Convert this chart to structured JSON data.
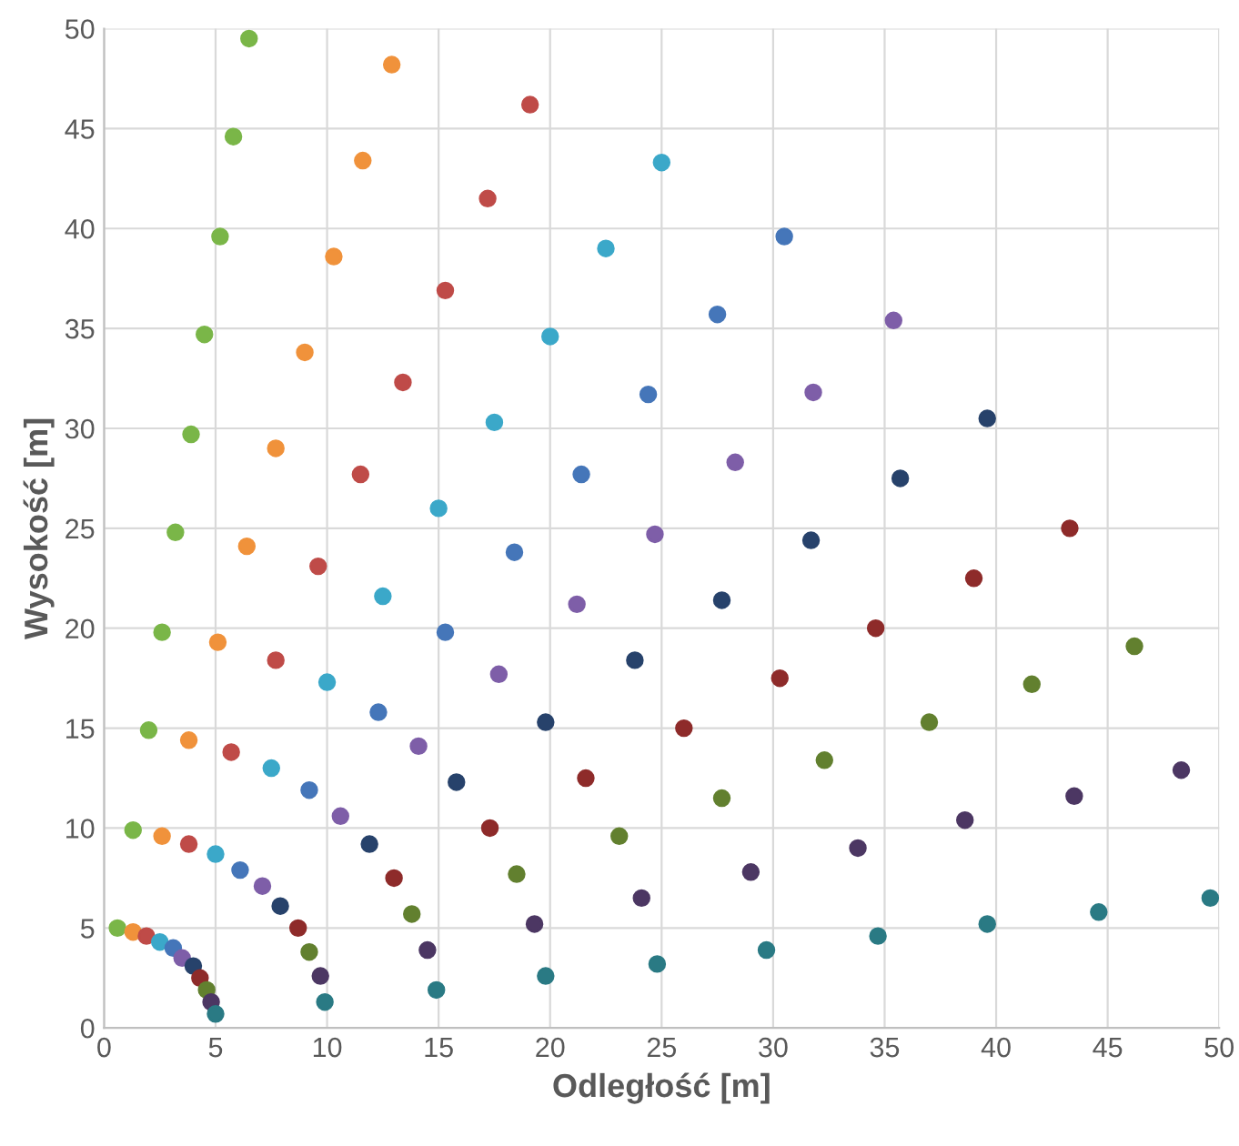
{
  "chart_data": {
    "type": "scatter",
    "xlabel": "Odległość [m]",
    "ylabel": "Wysokość [m]",
    "xlim": [
      0,
      50
    ],
    "ylim": [
      0,
      50
    ],
    "xticks": [
      0,
      5,
      10,
      15,
      20,
      25,
      30,
      35,
      40,
      45,
      50
    ],
    "yticks": [
      0,
      5,
      10,
      15,
      20,
      25,
      30,
      35,
      40,
      45,
      50
    ],
    "grid": true,
    "marker": "circle",
    "series": [
      {
        "color": "#7ab648",
        "x": [
          0.6,
          1.3,
          2.0,
          2.6,
          3.2,
          3.9,
          4.5,
          5.2,
          5.8,
          6.5
        ],
        "values": [
          5.0,
          9.9,
          14.9,
          19.8,
          24.8,
          29.7,
          34.7,
          39.6,
          44.6,
          49.5
        ]
      },
      {
        "color": "#f0923b",
        "x": [
          1.3,
          2.6,
          3.8,
          5.1,
          6.4,
          7.7,
          9.0,
          10.3,
          11.6,
          12.9
        ],
        "values": [
          4.8,
          9.6,
          14.4,
          19.3,
          24.1,
          29.0,
          33.8,
          38.6,
          43.4,
          48.2
        ]
      },
      {
        "color": "#bf4b48",
        "x": [
          1.9,
          3.8,
          5.7,
          7.7,
          9.6,
          11.5,
          13.4,
          15.3,
          17.2,
          19.1
        ],
        "values": [
          4.6,
          9.2,
          13.8,
          18.4,
          23.1,
          27.7,
          32.3,
          36.9,
          41.5,
          46.2
        ]
      },
      {
        "color": "#3ba8c9",
        "x": [
          2.5,
          5.0,
          7.5,
          10.0,
          12.5,
          15.0,
          17.5,
          20.0,
          22.5,
          25.0
        ],
        "values": [
          4.3,
          8.7,
          13.0,
          17.3,
          21.6,
          26.0,
          30.3,
          34.6,
          39.0,
          43.3
        ]
      },
      {
        "color": "#4576b9",
        "x": [
          3.1,
          6.1,
          9.2,
          12.3,
          15.3,
          18.4,
          21.4,
          24.4,
          27.5,
          30.5
        ],
        "values": [
          4.0,
          7.9,
          11.9,
          15.8,
          19.8,
          23.8,
          27.7,
          31.7,
          35.7,
          39.6
        ]
      },
      {
        "color": "#7e5ea8",
        "x": [
          3.5,
          7.1,
          10.6,
          14.1,
          17.7,
          21.2,
          24.7,
          28.3,
          31.8,
          35.4
        ],
        "values": [
          3.5,
          7.1,
          10.6,
          14.1,
          17.7,
          21.2,
          24.7,
          28.3,
          31.8,
          35.4
        ]
      },
      {
        "color": "#27426b",
        "x": [
          4.0,
          7.9,
          11.9,
          15.8,
          19.8,
          23.8,
          27.7,
          31.7,
          35.7,
          39.6
        ],
        "values": [
          3.1,
          6.1,
          9.2,
          12.3,
          15.3,
          18.4,
          21.4,
          24.4,
          27.5,
          30.5
        ]
      },
      {
        "color": "#8e2b2a",
        "x": [
          4.3,
          8.7,
          13.0,
          17.3,
          21.6,
          26.0,
          30.3,
          34.6,
          39.0,
          43.3
        ],
        "values": [
          2.5,
          5.0,
          7.5,
          10.0,
          12.5,
          15.0,
          17.5,
          20.0,
          22.5,
          25.0
        ]
      },
      {
        "color": "#62802f",
        "x": [
          4.6,
          9.2,
          13.8,
          18.5,
          23.1,
          27.7,
          32.3,
          37.0,
          41.6,
          46.2
        ],
        "values": [
          1.9,
          3.8,
          5.7,
          7.7,
          9.6,
          11.5,
          13.4,
          15.3,
          17.2,
          19.1
        ]
      },
      {
        "color": "#4c3763",
        "x": [
          4.8,
          9.7,
          14.5,
          19.3,
          24.1,
          29.0,
          33.8,
          38.6,
          43.5,
          48.3
        ],
        "values": [
          1.3,
          2.6,
          3.9,
          5.2,
          6.5,
          7.8,
          9.0,
          10.4,
          11.6,
          12.9
        ]
      },
      {
        "color": "#2a7a84",
        "x": [
          5.0,
          9.9,
          14.9,
          19.8,
          24.8,
          29.7,
          34.7,
          39.6,
          44.6,
          49.6
        ],
        "values": [
          0.7,
          1.3,
          1.9,
          2.6,
          3.2,
          3.9,
          4.6,
          5.2,
          5.8,
          6.5
        ]
      }
    ]
  }
}
